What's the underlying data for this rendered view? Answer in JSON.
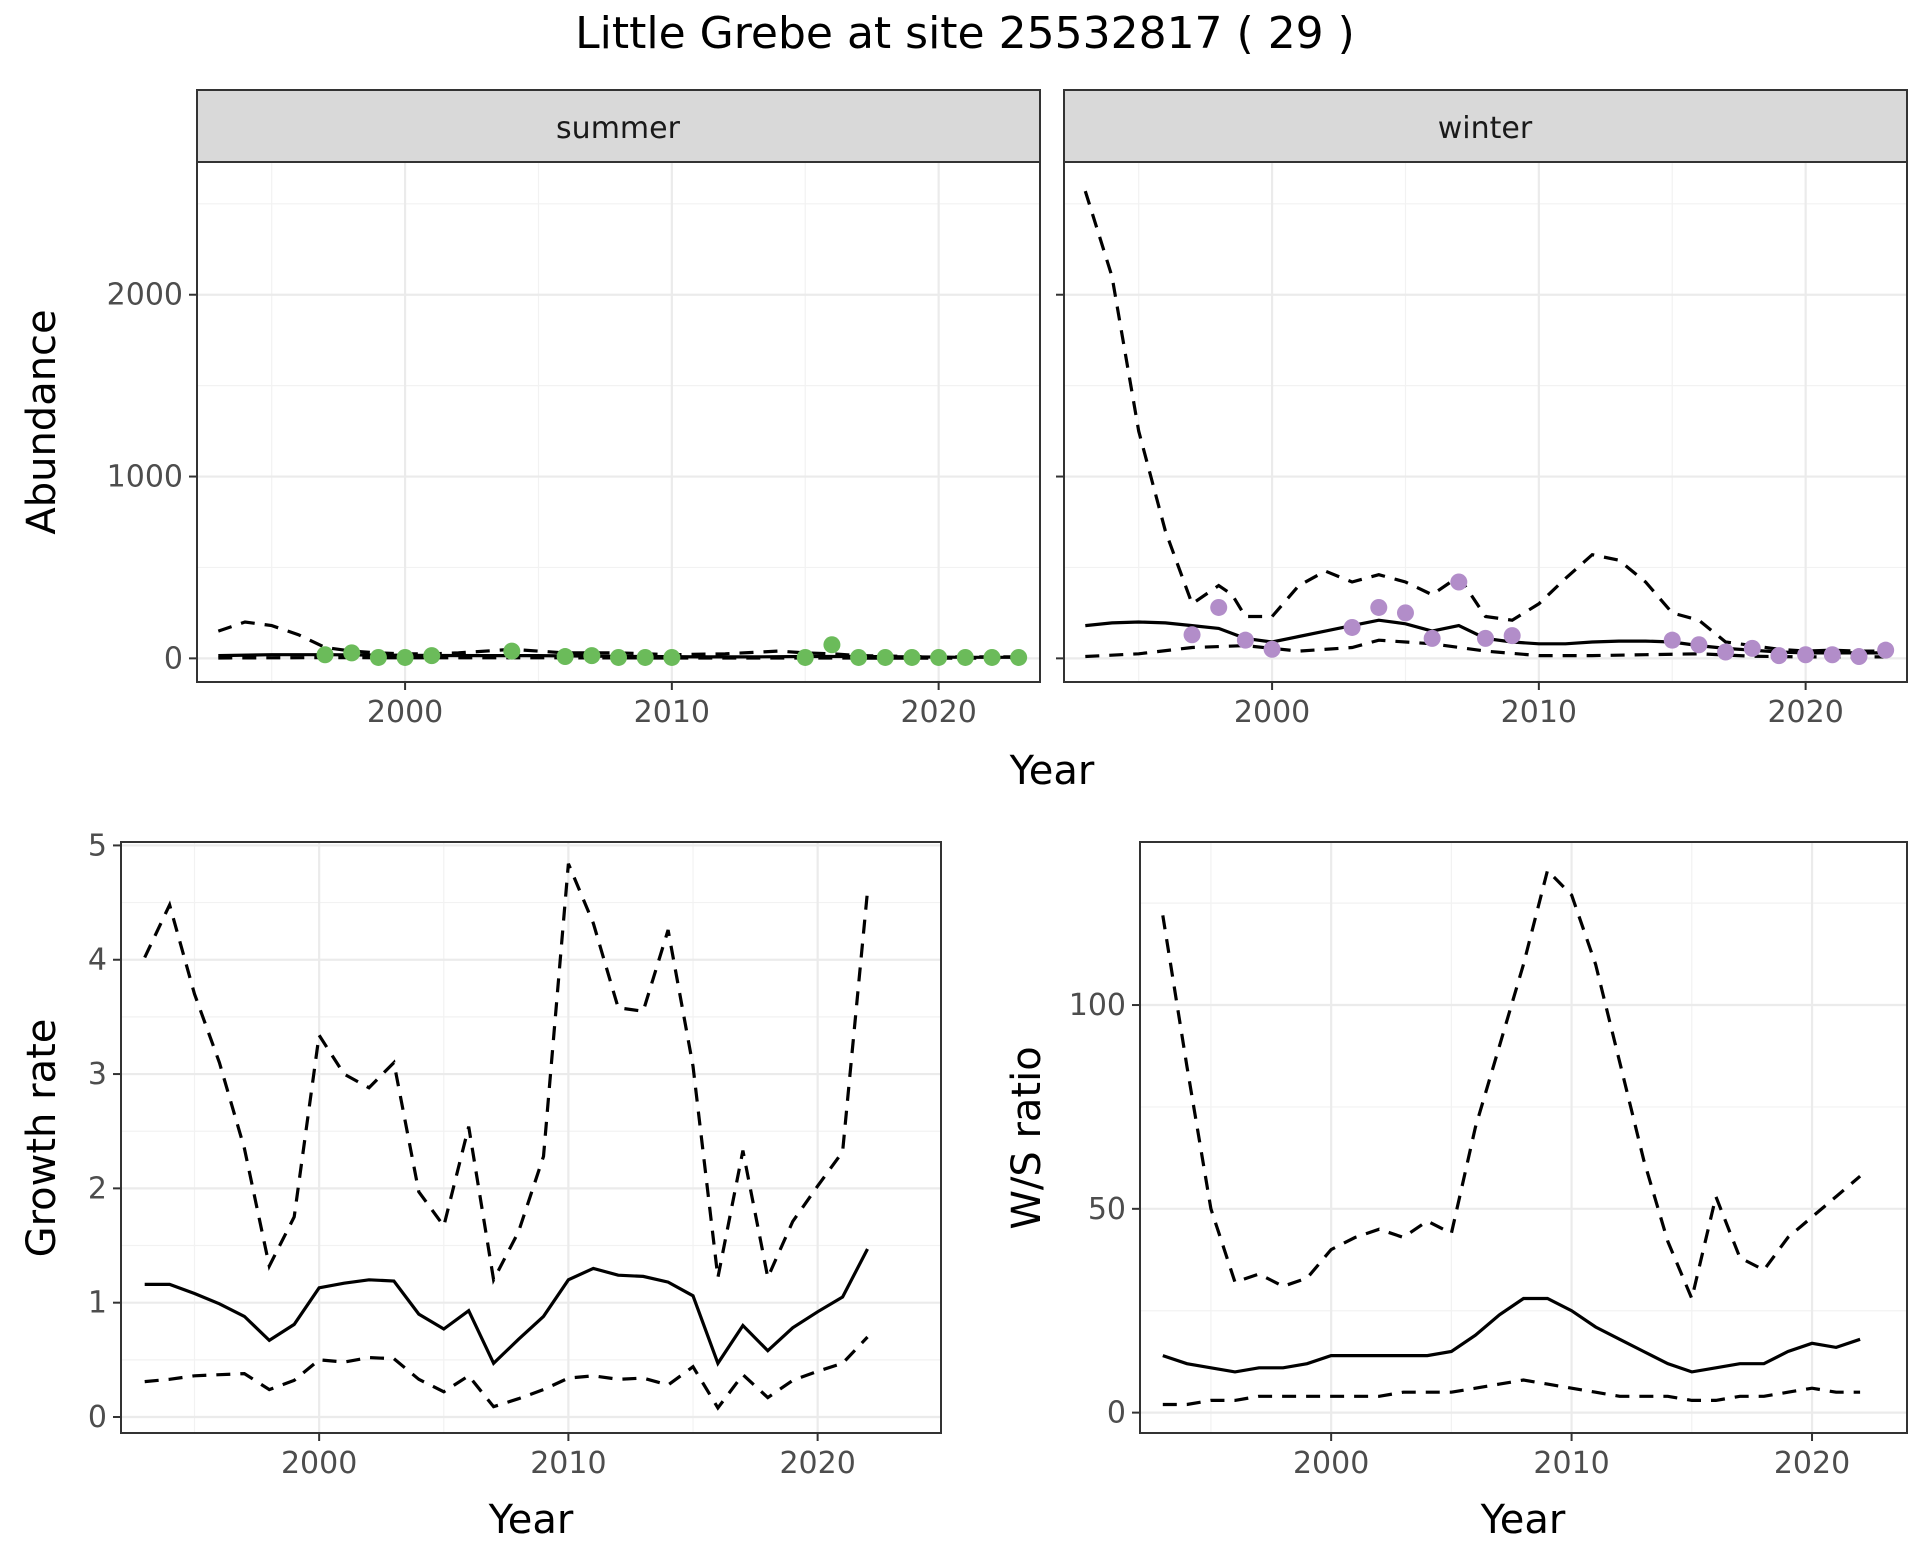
{
  "title": "Little Grebe at site 25532817 ( 29 )",
  "chart_data": [
    {
      "type": "line",
      "facet": "summer",
      "xlabel": "Year",
      "ylabel": "Abundance",
      "xlim": [
        1992.2,
        2023.8
      ],
      "ylim": [
        -130,
        2730
      ],
      "xticks": [
        2000,
        2010,
        2020
      ],
      "yticks": [
        0,
        1000,
        2000
      ],
      "grid": true,
      "point_color": "#6bbb5a",
      "median": {
        "x": [
          1993,
          1995,
          1997,
          1999,
          2001,
          2003,
          2005,
          2007,
          2009,
          2011,
          2013,
          2015,
          2017,
          2019,
          2021,
          2023
        ],
        "y": [
          15,
          20,
          20,
          18,
          16,
          15,
          15,
          12,
          10,
          8,
          8,
          10,
          10,
          8,
          6,
          6
        ]
      },
      "upper": {
        "x": [
          1993,
          1994,
          1995,
          1996,
          1997,
          1998,
          1999,
          2000,
          2001,
          2002,
          2004,
          2005,
          2006,
          2008,
          2010,
          2012,
          2014,
          2015,
          2016,
          2017,
          2019,
          2021,
          2023
        ],
        "y": [
          150,
          200,
          180,
          130,
          60,
          40,
          30,
          25,
          25,
          30,
          50,
          40,
          30,
          30,
          20,
          25,
          40,
          30,
          25,
          15,
          10,
          8,
          8
        ]
      },
      "lower": {
        "x": [
          1993,
          1995,
          1997,
          2000,
          2005,
          2010,
          2015,
          2020,
          2023
        ],
        "y": [
          2,
          3,
          4,
          3,
          3,
          2,
          2,
          1,
          1
        ]
      },
      "points": {
        "x": [
          1997,
          1998,
          1999,
          2000,
          2001,
          2004,
          2006,
          2007,
          2008,
          2009,
          2010,
          2015,
          2016,
          2017,
          2018,
          2019,
          2020,
          2021,
          2022,
          2023
        ],
        "y": [
          20,
          30,
          5,
          5,
          15,
          40,
          10,
          15,
          5,
          5,
          5,
          5,
          75,
          5,
          5,
          5,
          5,
          5,
          5,
          5
        ]
      }
    },
    {
      "type": "line",
      "facet": "winter",
      "xlabel": "Year",
      "ylabel": "Abundance",
      "xlim": [
        1992.2,
        2023.8
      ],
      "ylim": [
        -130,
        2730
      ],
      "xticks": [
        2000,
        2010,
        2020
      ],
      "yticks": [
        0,
        1000,
        2000
      ],
      "grid": true,
      "point_color": "#b28dc9",
      "median": {
        "x": [
          1993,
          1994,
          1995,
          1996,
          1997,
          1998,
          1999,
          2000,
          2001,
          2002,
          2003,
          2004,
          2005,
          2006,
          2007,
          2008,
          2009,
          2010,
          2011,
          2012,
          2013,
          2014,
          2015,
          2016,
          2017,
          2018,
          2019,
          2020,
          2021,
          2022,
          2023
        ],
        "y": [
          180,
          195,
          200,
          195,
          180,
          165,
          110,
          90,
          120,
          150,
          180,
          210,
          190,
          150,
          180,
          110,
          90,
          80,
          80,
          90,
          95,
          95,
          90,
          70,
          55,
          45,
          35,
          30,
          30,
          30,
          30
        ]
      },
      "upper": {
        "x": [
          1993,
          1994,
          1995,
          1996,
          1997,
          1998,
          1998.5,
          1999,
          2000,
          2001,
          2002,
          2003,
          2004,
          2005,
          2006,
          2007,
          2008,
          2009,
          2010,
          2011,
          2012,
          2013,
          2014,
          2015,
          2016,
          2017,
          2018,
          2019,
          2020,
          2021,
          2022,
          2023
        ],
        "y": [
          2570,
          2100,
          1250,
          700,
          300,
          400,
          350,
          230,
          230,
          400,
          480,
          420,
          460,
          420,
          350,
          450,
          230,
          210,
          300,
          440,
          570,
          540,
          420,
          250,
          210,
          90,
          70,
          50,
          40,
          45,
          40,
          40
        ]
      },
      "lower": {
        "x": [
          1993,
          1995,
          1997,
          1999,
          2001,
          2003,
          2004,
          2006,
          2008,
          2010,
          2012,
          2014,
          2016,
          2018,
          2020,
          2023
        ],
        "y": [
          10,
          25,
          60,
          70,
          40,
          60,
          100,
          80,
          40,
          15,
          15,
          20,
          25,
          12,
          8,
          8
        ]
      },
      "points": {
        "x": [
          1997,
          1998,
          1999,
          2000,
          2003,
          2004,
          2005,
          2006,
          2007,
          2008,
          2009,
          2015,
          2016,
          2017,
          2018,
          2019,
          2020,
          2021,
          2022,
          2023
        ],
        "y": [
          130,
          280,
          100,
          50,
          170,
          280,
          250,
          110,
          420,
          110,
          125,
          100,
          75,
          35,
          55,
          15,
          20,
          20,
          10,
          45
        ]
      }
    },
    {
      "type": "line",
      "xlabel": "Year",
      "ylabel": "Growth rate",
      "xlim": [
        1992.05,
        2024.95
      ],
      "ylim": [
        -0.14,
        5.03
      ],
      "xticks": [
        2000,
        2010,
        2020
      ],
      "yticks": [
        0,
        1,
        2,
        3,
        4,
        5
      ],
      "grid": true,
      "median": {
        "x": [
          1993,
          1994,
          1995,
          1996,
          1997,
          1998,
          1999,
          2000,
          2001,
          2002,
          2003,
          2004,
          2005,
          2006,
          2007,
          2008,
          2009,
          2010,
          2011,
          2012,
          2013,
          2014,
          2015,
          2016,
          2017,
          2018,
          2019,
          2020,
          2021,
          2022
        ],
        "y": [
          1.16,
          1.16,
          1.08,
          0.99,
          0.88,
          0.67,
          0.81,
          1.13,
          1.17,
          1.2,
          1.19,
          0.9,
          0.77,
          0.93,
          0.47,
          0.68,
          0.88,
          1.2,
          1.3,
          1.24,
          1.23,
          1.18,
          1.06,
          0.47,
          0.8,
          0.58,
          0.78,
          0.92,
          1.05,
          1.47
        ]
      },
      "upper": {
        "x": [
          1993,
          1994,
          1995,
          1996,
          1997,
          1998,
          1999,
          2000,
          2001,
          2002,
          2003,
          2004,
          2005,
          2006,
          2007,
          2008,
          2009,
          2010,
          2011,
          2012,
          2013,
          2014,
          2015,
          2016,
          2017,
          2018,
          2019,
          2020,
          2021,
          2022
        ],
        "y": [
          4.02,
          4.48,
          3.7,
          3.1,
          2.35,
          1.32,
          1.75,
          3.34,
          3.0,
          2.88,
          3.1,
          1.97,
          1.67,
          2.54,
          1.2,
          1.62,
          2.28,
          4.84,
          4.32,
          3.58,
          3.55,
          4.26,
          3.07,
          1.22,
          2.33,
          1.22,
          1.71,
          2.02,
          2.32,
          4.6
        ]
      },
      "lower": {
        "x": [
          1993,
          1994,
          1995,
          1996,
          1997,
          1998,
          1999,
          2000,
          2001,
          2002,
          2003,
          2004,
          2005,
          2006,
          2007,
          2008,
          2009,
          2010,
          2011,
          2012,
          2013,
          2014,
          2015,
          2016,
          2017,
          2018,
          2019,
          2020,
          2021,
          2022
        ],
        "y": [
          0.31,
          0.33,
          0.36,
          0.37,
          0.38,
          0.24,
          0.32,
          0.5,
          0.48,
          0.52,
          0.51,
          0.33,
          0.22,
          0.36,
          0.09,
          0.16,
          0.24,
          0.34,
          0.36,
          0.33,
          0.34,
          0.28,
          0.44,
          0.08,
          0.37,
          0.17,
          0.32,
          0.4,
          0.47,
          0.7
        ]
      }
    },
    {
      "type": "line",
      "xlabel": "Year",
      "ylabel": "W/S ratio",
      "xlim": [
        1992.05,
        2023.95
      ],
      "ylim": [
        -5,
        140
      ],
      "xticks": [
        2000,
        2010,
        2020
      ],
      "yticks": [
        0,
        50,
        100
      ],
      "grid": true,
      "median": {
        "x": [
          1993,
          1994,
          1995,
          1996,
          1997,
          1998,
          1999,
          2000,
          2001,
          2002,
          2003,
          2004,
          2005,
          2006,
          2007,
          2008,
          2009,
          2010,
          2011,
          2012,
          2013,
          2014,
          2015,
          2016,
          2017,
          2018,
          2019,
          2020,
          2021,
          2022
        ],
        "y": [
          14,
          12,
          11,
          10,
          11,
          11,
          12,
          14,
          14,
          14,
          14,
          14,
          15,
          19,
          24,
          28,
          28,
          25,
          21,
          18,
          15,
          12,
          10,
          11,
          12,
          12,
          15,
          17,
          16,
          18
        ]
      },
      "upper": {
        "x": [
          1993,
          1994,
          1995,
          1996,
          1997,
          1998,
          1999,
          2000,
          2001,
          2002,
          2003,
          2004,
          2005,
          2006,
          2007,
          2008,
          2009,
          2010,
          2011,
          2012,
          2013,
          2014,
          2015,
          2016,
          2017,
          2018,
          2019,
          2020,
          2021,
          2022
        ],
        "y": [
          122,
          85,
          50,
          32,
          34,
          31,
          33,
          40,
          43,
          45,
          43,
          47,
          44,
          70,
          90,
          110,
          133,
          127,
          110,
          86,
          62,
          42,
          28,
          53,
          38,
          35,
          43,
          48,
          53,
          58
        ]
      },
      "lower": {
        "x": [
          1993,
          1994,
          1995,
          1996,
          1997,
          1998,
          1999,
          2000,
          2001,
          2002,
          2003,
          2004,
          2005,
          2006,
          2007,
          2008,
          2009,
          2010,
          2011,
          2012,
          2013,
          2014,
          2015,
          2016,
          2017,
          2018,
          2019,
          2020,
          2021,
          2022
        ],
        "y": [
          2,
          2,
          3,
          3,
          4,
          4,
          4,
          4,
          4,
          4,
          5,
          5,
          5,
          6,
          7,
          8,
          7,
          6,
          5,
          4,
          4,
          4,
          3,
          3,
          4,
          4,
          5,
          6,
          5,
          5
        ]
      }
    }
  ]
}
